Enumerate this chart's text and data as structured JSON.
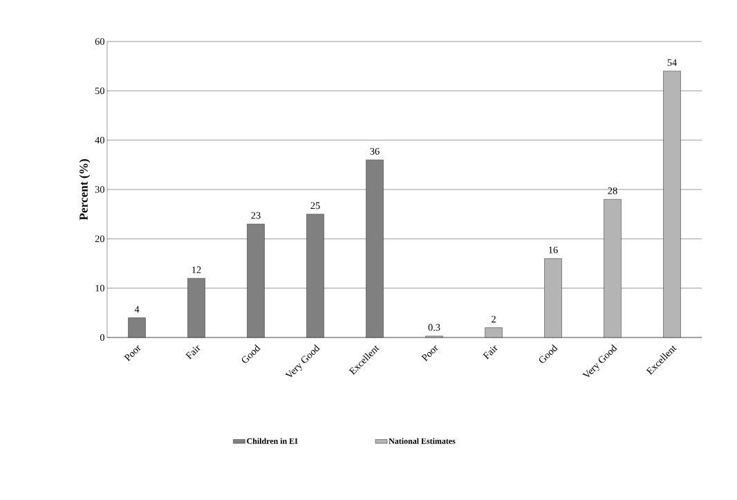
{
  "chart_data": {
    "type": "bar",
    "ylabel": "Percent (%)",
    "categories": [
      "Poor",
      "Fair",
      "Good",
      "Very Good",
      "Excellent",
      "Poor",
      "Fair",
      "Good",
      "Very Good",
      "Excellent"
    ],
    "series": [
      {
        "name": "Children in EI",
        "color": "#808080",
        "values": [
          4,
          12,
          23,
          25,
          36,
          null,
          null,
          null,
          null,
          null
        ]
      },
      {
        "name": "National Estimates",
        "color": "#b4b4b4",
        "values": [
          null,
          null,
          null,
          null,
          null,
          0.3,
          2,
          16,
          28,
          54
        ]
      }
    ],
    "ylim": [
      0,
      60
    ],
    "yticks": [
      0,
      10,
      20,
      30,
      40,
      50,
      60
    ],
    "grid": "y",
    "legend": "bottom",
    "data_labels": true
  }
}
